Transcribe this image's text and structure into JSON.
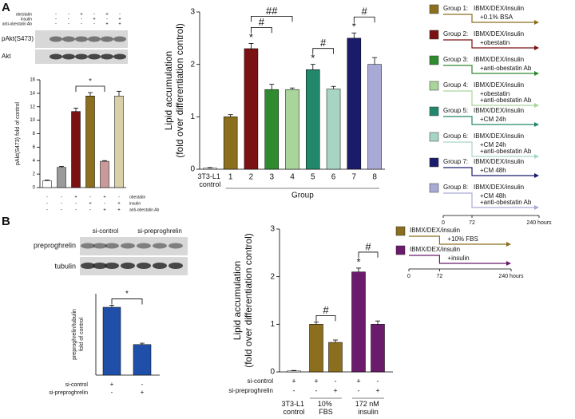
{
  "panels": [
    "A",
    "B"
  ],
  "blots": [
    {
      "sign_rows": [
        {
          "name": "obestatin",
          "signs": [
            "-",
            "-",
            "+",
            "-",
            "+",
            "-"
          ]
        },
        {
          "name": "insulin",
          "signs": [
            "-",
            "-",
            "-",
            "+",
            "-",
            "+"
          ]
        },
        {
          "name": "anti-obestatin Ab",
          "signs": [
            "-",
            "-",
            "-",
            "-",
            "+",
            "+"
          ]
        }
      ],
      "bands": [
        "pAkt(S473)",
        "Akt"
      ]
    },
    {
      "columns": [
        "si-control",
        "si-preproghrelin"
      ],
      "bands": [
        "preproghrelin",
        "tubulin"
      ]
    }
  ],
  "chart_data": [
    {
      "type": "bar",
      "ylabel": [
        "pAkt(S473) fold of control"
      ],
      "categories": [
        null,
        null,
        null,
        null,
        null,
        null
      ],
      "values": [
        1.0,
        3.0,
        11.3,
        13.6,
        3.9,
        13.6
      ],
      "errors": [
        0.1,
        0.15,
        0.5,
        0.5,
        0.1,
        0.7
      ],
      "colors": [
        "#ffffff",
        "#9a9a9a",
        "#7b1113",
        "#8b6f1e",
        "#c99a9a",
        "#d9cfa8"
      ],
      "ylim": [
        0,
        16
      ],
      "yticks": [
        0,
        2,
        4,
        6,
        8,
        10,
        12,
        14,
        16
      ],
      "brackets": [
        {
          "label": "*",
          "between": [
            2,
            4
          ]
        }
      ],
      "sign_rows": [
        {
          "name": "obestatin",
          "signs": [
            "-",
            "-",
            "+",
            "-",
            "+",
            "-"
          ]
        },
        {
          "name": "insulin",
          "signs": [
            "-",
            "-",
            "-",
            "+",
            "-",
            "+"
          ]
        },
        {
          "name": "anti-obestatin Ab",
          "signs": [
            "-",
            "-",
            "-",
            "-",
            "+",
            "+"
          ]
        }
      ]
    },
    {
      "type": "bar",
      "ylabel": [
        "Lipid accumulation",
        "(fold over differentiation control)"
      ],
      "xlabel": "Group",
      "categories": [
        "3T3-L1 control",
        "1",
        "2",
        "3",
        "4",
        "5",
        "6",
        "7",
        "8"
      ],
      "values": [
        0.02,
        1.0,
        2.3,
        1.52,
        1.52,
        1.9,
        1.53,
        2.5,
        2.0
      ],
      "errors": [
        0.01,
        0.04,
        0.1,
        0.1,
        0.03,
        0.1,
        0.05,
        0.1,
        0.13
      ],
      "colors": [
        "#ffffff",
        "#8b6f1e",
        "#7b1113",
        "#2e8b2e",
        "#a9d49a",
        "#23876b",
        "#a6d6c3",
        "#1b1b6b",
        "#a9a9d6"
      ],
      "ylim": [
        0,
        3
      ],
      "yticks": [
        0,
        1,
        2,
        3
      ],
      "stars": [
        null,
        null,
        "*",
        null,
        null,
        "*",
        null,
        "*",
        null
      ],
      "brackets": [
        {
          "label": "#",
          "between": [
            2,
            3
          ]
        },
        {
          "label": "##",
          "between": [
            2,
            4
          ]
        },
        {
          "label": "#",
          "between": [
            5,
            6
          ]
        },
        {
          "label": "#",
          "between": [
            7,
            8
          ]
        }
      ]
    },
    {
      "type": "bar",
      "ylabel": [
        "preproghrelin/tubulin",
        "fold of control"
      ],
      "categories": [
        null,
        null
      ],
      "values": [
        1.0,
        0.45
      ],
      "errors": [
        0.03,
        0.02
      ],
      "colors": [
        "#1f4fa8",
        "#1f4fa8"
      ],
      "ylim": [
        0,
        1.2
      ],
      "brackets": [
        {
          "label": "*",
          "between": [
            0,
            1
          ]
        }
      ],
      "sign_rows": [
        {
          "name": "si-control",
          "signs": [
            "+",
            "-"
          ]
        },
        {
          "name": "si-preproghrelin",
          "signs": [
            "-",
            "+"
          ]
        }
      ]
    },
    {
      "type": "bar",
      "ylabel": [
        "Lipid accumulation",
        "(fold over differentiation control)"
      ],
      "categories": [
        null,
        null,
        null,
        null,
        null
      ],
      "values": [
        0.02,
        1.0,
        0.62,
        2.1,
        1.0
      ],
      "errors": [
        0.01,
        0.05,
        0.05,
        0.08,
        0.07
      ],
      "colors": [
        "#ffffff",
        "#8b6f1e",
        "#8b6f1e",
        "#6a1b6b",
        "#6a1b6b"
      ],
      "ylim": [
        0,
        3
      ],
      "yticks": [
        0,
        1,
        2,
        3
      ],
      "stars": [
        null,
        null,
        null,
        "*",
        null
      ],
      "brackets": [
        {
          "label": "#",
          "between": [
            1,
            2
          ]
        },
        {
          "label": "#",
          "between": [
            3,
            4
          ]
        }
      ],
      "sign_rows": [
        {
          "name": "si-control",
          "signs": [
            "+",
            "+",
            "-",
            "+",
            "-"
          ]
        },
        {
          "name": "si-preproghrelin",
          "signs": [
            "-",
            "-",
            "+",
            "-",
            "+"
          ]
        }
      ],
      "group_labels": [
        {
          "label": "3T3-L1 control",
          "span": [
            0,
            0
          ]
        },
        {
          "label": "10% FBS",
          "span": [
            1,
            2
          ]
        },
        {
          "label": "172 nM insulin",
          "span": [
            3,
            4
          ]
        }
      ]
    }
  ],
  "timelines": [
    {
      "xlim": [
        0,
        240
      ],
      "ticks": [
        0,
        72,
        {
          "value": 240,
          "label": "240 hours"
        }
      ],
      "groups": [
        {
          "name": "Group 1:",
          "protocol": "IBMX/DEX/insulin",
          "treatment": [
            "+0.1% BSA"
          ],
          "color": "#8b6f1e"
        },
        {
          "name": "Group 2:",
          "protocol": "IBMX/DEX/insulin",
          "treatment": [
            "+obestatin"
          ],
          "color": "#7b1113"
        },
        {
          "name": "Group 3:",
          "protocol": "IBMX/DEX/insulin",
          "treatment": [
            "+anti-obestatin Ab"
          ],
          "color": "#2e8b2e"
        },
        {
          "name": "Group 4:",
          "protocol": "IBMX/DEX/insulin",
          "treatment": [
            "+obestatin",
            "+anti-obestatin Ab"
          ],
          "color": "#a9d49a"
        },
        {
          "name": "Group 5:",
          "protocol": "IBMX/DEX/insulin",
          "treatment": [
            "+CM 24h"
          ],
          "color": "#23876b"
        },
        {
          "name": "Group 6:",
          "protocol": "IBMX/DEX/insulin",
          "treatment": [
            "+CM 24h",
            "+anti-obestatin Ab"
          ],
          "color": "#a6d6c3"
        },
        {
          "name": "Group 7:",
          "protocol": "IBMX/DEX/insulin",
          "treatment": [
            "+CM 48h"
          ],
          "color": "#1b1b6b"
        },
        {
          "name": "Group 8:",
          "protocol": "IBMX/DEX/insulin",
          "treatment": [
            "+CM 48h",
            "+anti-obestatin Ab"
          ],
          "color": "#a9a9d6"
        }
      ]
    },
    {
      "xlim": [
        0,
        240
      ],
      "ticks": [
        0,
        72,
        {
          "value": 240,
          "label": "240 hours"
        }
      ],
      "groups": [
        {
          "protocol": "IBMX/DEX/insulin",
          "treatment": [
            "+10% FBS"
          ],
          "color": "#8b6f1e"
        },
        {
          "protocol": "IBMX/DEX/insulin",
          "treatment": [
            "+insulin"
          ],
          "color": "#6a1b6b"
        }
      ]
    }
  ]
}
